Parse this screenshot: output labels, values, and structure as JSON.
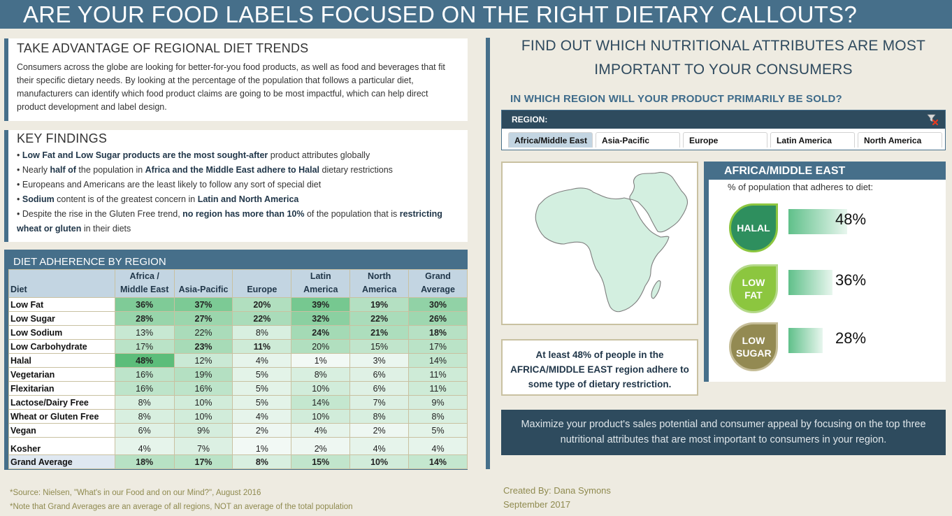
{
  "title": "ARE YOUR FOOD LABELS FOCUSED ON THE RIGHT DIETARY CALLOUTS?",
  "trends": {
    "heading": "TAKE ADVANTAGE OF REGIONAL DIET TRENDS",
    "body": "Consumers across the globe are looking for better-for-you food products, as well as food and beverages that fit their specific dietary needs. By looking at the percentage of the population that follows a particular diet, manufacturers can identify which food product claims are going to be most impactful, which can help direct product development and label design."
  },
  "findings": {
    "heading": "KEY FINDINGS",
    "items": [
      [
        {
          "b": true,
          "t": "Low Fat and Low Sugar products are the most sought-after"
        },
        {
          "b": false,
          "t": " product attributes globally"
        }
      ],
      [
        {
          "b": false,
          "t": "Nearly "
        },
        {
          "b": true,
          "t": "half of"
        },
        {
          "b": false,
          "t": " the population in "
        },
        {
          "b": true,
          "t": "Africa and the Middle East adhere to Halal"
        },
        {
          "b": false,
          "t": " dietary restrictions"
        }
      ],
      [
        {
          "b": false,
          "t": "Europeans and Americans are the least likely to follow any sort of special diet"
        }
      ],
      [
        {
          "b": true,
          "t": "Sodium"
        },
        {
          "b": false,
          "t": " content is of the greatest concern in "
        },
        {
          "b": true,
          "t": "Latin and North America"
        }
      ],
      [
        {
          "b": false,
          "t": "Despite the rise in the Gluten Free trend, "
        },
        {
          "b": true,
          "t": "no region has more than 10%"
        },
        {
          "b": false,
          "t": " of the population that is "
        },
        {
          "b": true,
          "t": "restricting wheat or gluten"
        },
        {
          "b": false,
          "t": " in their diets"
        }
      ]
    ]
  },
  "table": {
    "title": "DIET ADHERENCE BY REGION",
    "headers": [
      "Diet",
      "Africa / Middle East",
      "Asia-Pacific",
      "Europe",
      "Latin America",
      "North America",
      "Grand Average"
    ],
    "rows": [
      {
        "diet": "Low Fat",
        "values": [
          36,
          37,
          20,
          39,
          19,
          30
        ],
        "bold": [
          1,
          1,
          1,
          1,
          1,
          1
        ]
      },
      {
        "diet": "Low Sugar",
        "values": [
          28,
          27,
          22,
          32,
          22,
          26
        ],
        "bold": [
          1,
          1,
          1,
          1,
          1,
          1
        ]
      },
      {
        "diet": "Low Sodium",
        "values": [
          13,
          22,
          8,
          24,
          21,
          18
        ],
        "bold": [
          0,
          0,
          0,
          1,
          1,
          1
        ]
      },
      {
        "diet": "Low Carbohydrate",
        "values": [
          17,
          23,
          11,
          20,
          15,
          17
        ],
        "bold": [
          0,
          1,
          1,
          0,
          0,
          0
        ]
      },
      {
        "diet": "Halal",
        "values": [
          48,
          12,
          4,
          1,
          3,
          14
        ],
        "bold": [
          1,
          0,
          0,
          0,
          0,
          0
        ]
      },
      {
        "diet": "Vegetarian",
        "values": [
          16,
          19,
          5,
          8,
          6,
          11
        ],
        "bold": [
          0,
          0,
          0,
          0,
          0,
          0
        ]
      },
      {
        "diet": "Flexitarian",
        "values": [
          16,
          16,
          5,
          10,
          6,
          11
        ],
        "bold": [
          0,
          0,
          0,
          0,
          0,
          0
        ]
      },
      {
        "diet": "Lactose/Dairy Free",
        "values": [
          8,
          10,
          5,
          14,
          7,
          9
        ],
        "bold": [
          0,
          0,
          0,
          0,
          0,
          0
        ]
      },
      {
        "diet": "Wheat or Gluten Free",
        "values": [
          8,
          10,
          4,
          10,
          8,
          8
        ],
        "bold": [
          0,
          0,
          0,
          0,
          0,
          0
        ]
      },
      {
        "diet": "Vegan",
        "values": [
          6,
          9,
          2,
          4,
          2,
          5
        ],
        "bold": [
          0,
          0,
          0,
          0,
          0,
          0
        ]
      },
      {
        "diet": "Kosher",
        "values": [
          4,
          7,
          1,
          2,
          4,
          4
        ],
        "bold": [
          0,
          0,
          0,
          0,
          0,
          0
        ]
      },
      {
        "diet": "Grand Average",
        "values": [
          18,
          17,
          8,
          15,
          10,
          14
        ],
        "bold": [
          1,
          1,
          1,
          1,
          1,
          1
        ]
      }
    ],
    "heat_colors": {
      "low": "#f7fbf9",
      "high": "#5cbd7a"
    }
  },
  "footnotes": [
    "*Source: Nielsen, \"What's in our Food and on our Mind?\", August 2016",
    "*Note that Grand Averages are an average of all regions, NOT an average of the total population"
  ],
  "credits": [
    "Created By: Dana Symons",
    "September 2017"
  ],
  "right": {
    "heading": "FIND OUT WHICH NUTRITIONAL ATTRIBUTES ARE MOST IMPORTANT TO YOUR CONSUMERS",
    "question": "IN WHICH REGION WILL YOUR PRODUCT PRIMARILY BE SOLD?",
    "slicer": {
      "label": "REGION:",
      "clear_icon": "clear-filter-icon",
      "options": [
        "Africa/Middle East",
        "Asia-Pacific",
        "Europe",
        "Latin America",
        "North America"
      ],
      "selected": "Africa/Middle East"
    },
    "map_icon": "africa-middle-east-map",
    "callout": "At least 48% of people in the AFRICA/MIDDLE EAST region adhere to some type of dietary restriction.",
    "region_panel": {
      "title": "AFRICA/MIDDLE EAST",
      "subtitle": "% of population that adheres to diet:",
      "attributes": [
        {
          "label": "HALAL",
          "value": 48,
          "display": "48%",
          "color": "#2e8f5e",
          "ring": "#8cc63f"
        },
        {
          "label": "LOW FAT",
          "value": 36,
          "display": "36%",
          "color": "#8cc63f",
          "ring": "#b5d98a"
        },
        {
          "label": "LOW SUGAR",
          "value": 28,
          "display": "28%",
          "color": "#938a52",
          "ring": "#c5bd97"
        }
      ]
    },
    "tip": "Maximize your product's sales potential and consumer appeal by focusing on the top three nutritional attributes that are most important to consumers in your region."
  }
}
